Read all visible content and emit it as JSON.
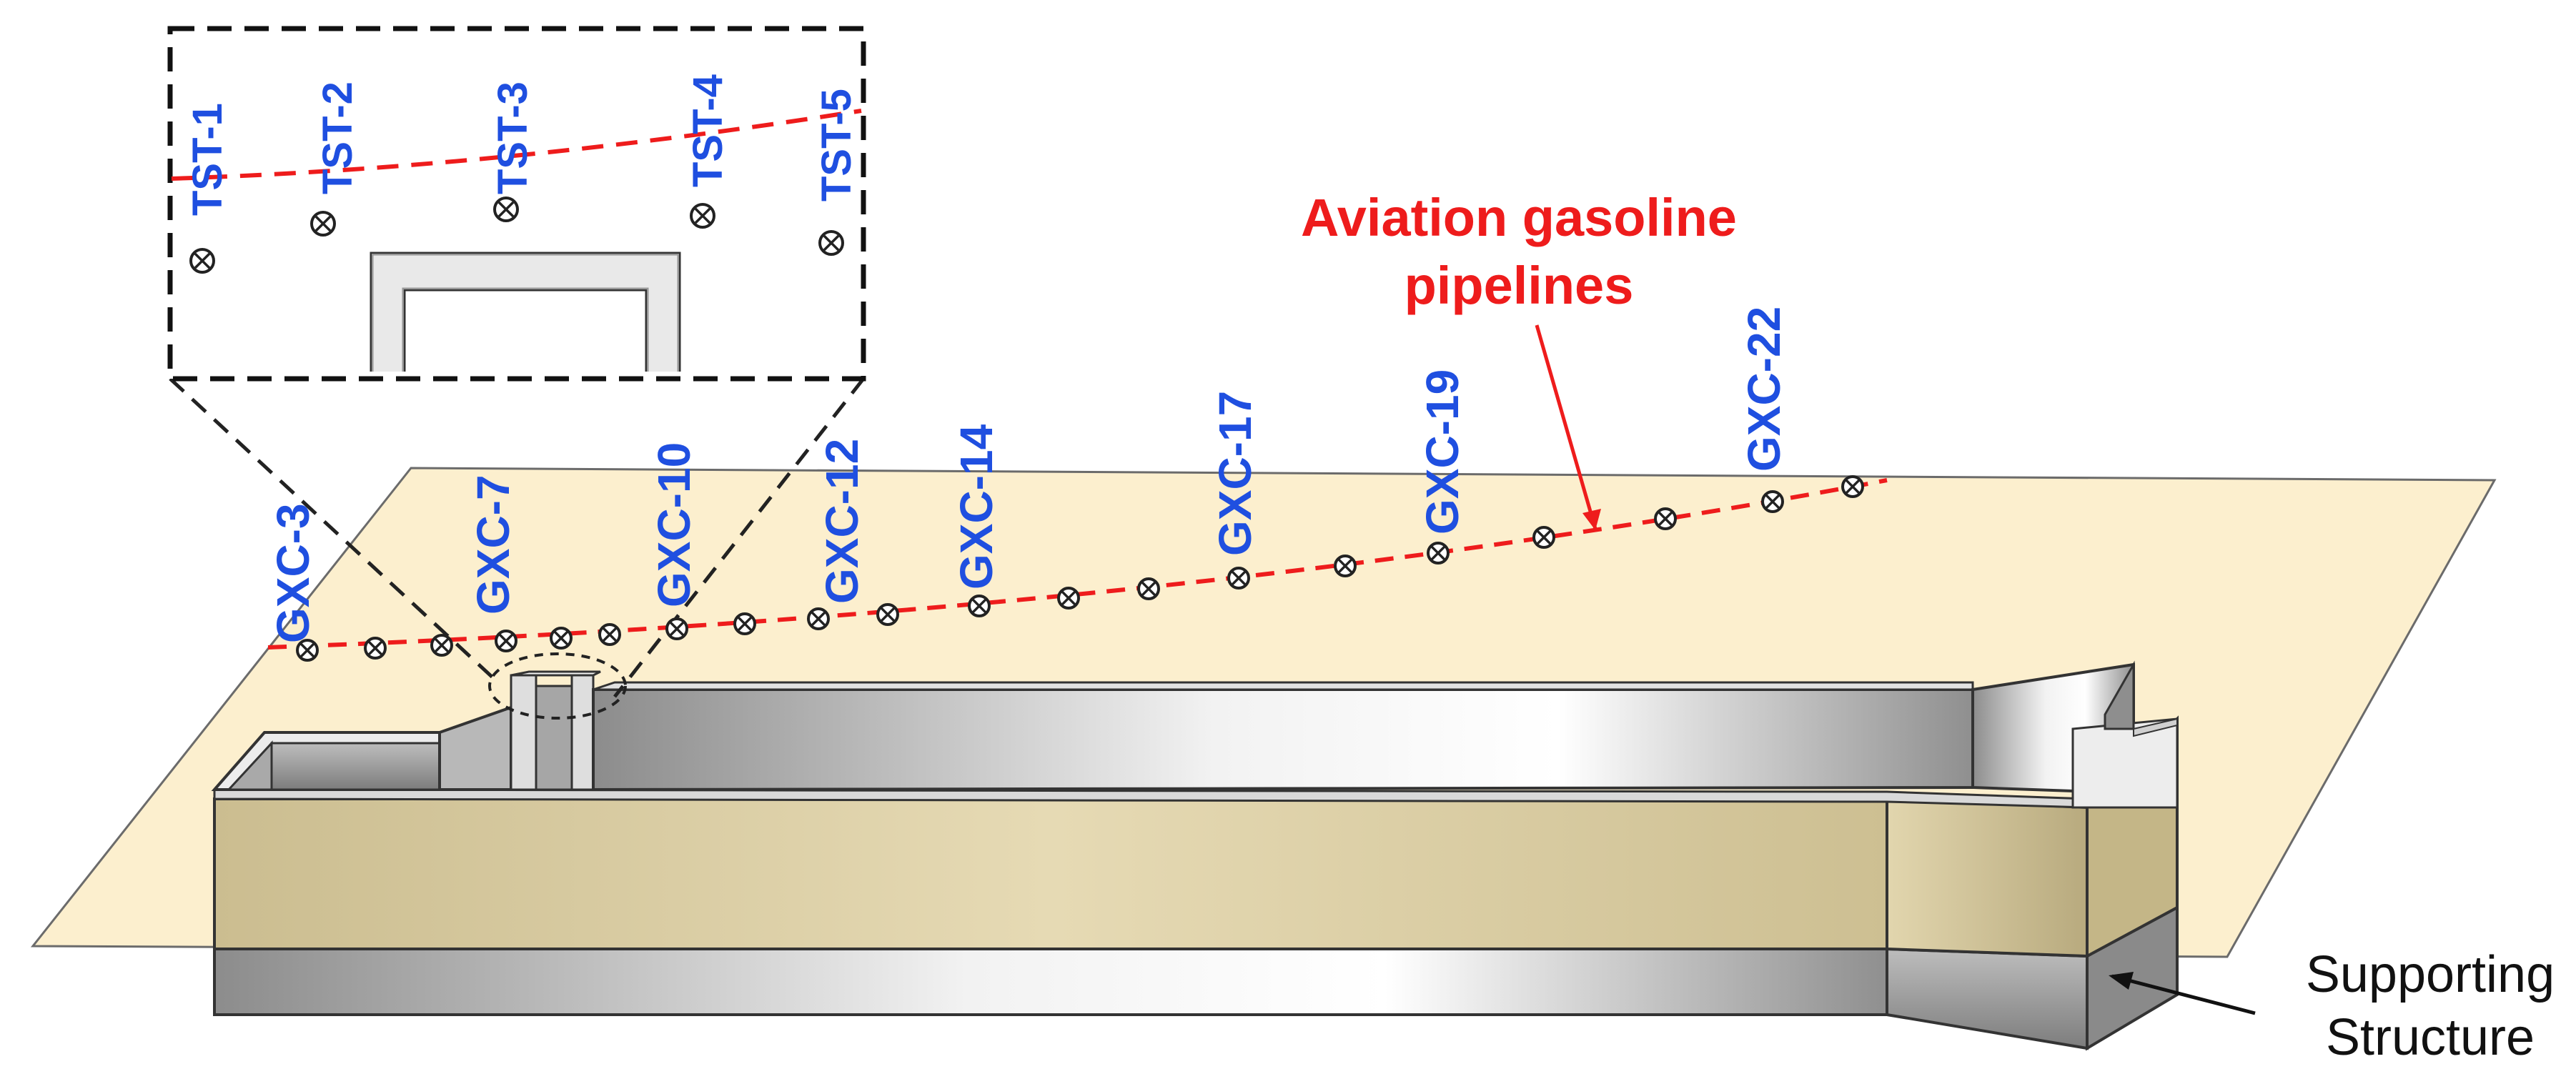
{
  "annotations": {
    "pipeline_label_line1": "Aviation gasoline",
    "pipeline_label_line2": "pipelines",
    "support_label_line1": "Supporting",
    "support_label_line2": "Structure"
  },
  "monitoring_points": [
    "GXC-3",
    "GXC-7",
    "GXC-10",
    "GXC-12",
    "GXC-14",
    "GXC-17",
    "GXC-19",
    "GXC-22"
  ],
  "inset_points": [
    "TST-1",
    "TST-2",
    "TST-3",
    "TST-4",
    "TST-5"
  ],
  "colors": {
    "ground_plane": "#fcefce",
    "wall_face": "#d7c99d",
    "pipeline": "#ee1c1c",
    "point_label": "#1f4fe0",
    "structure_gray": "#9a9a9a"
  }
}
